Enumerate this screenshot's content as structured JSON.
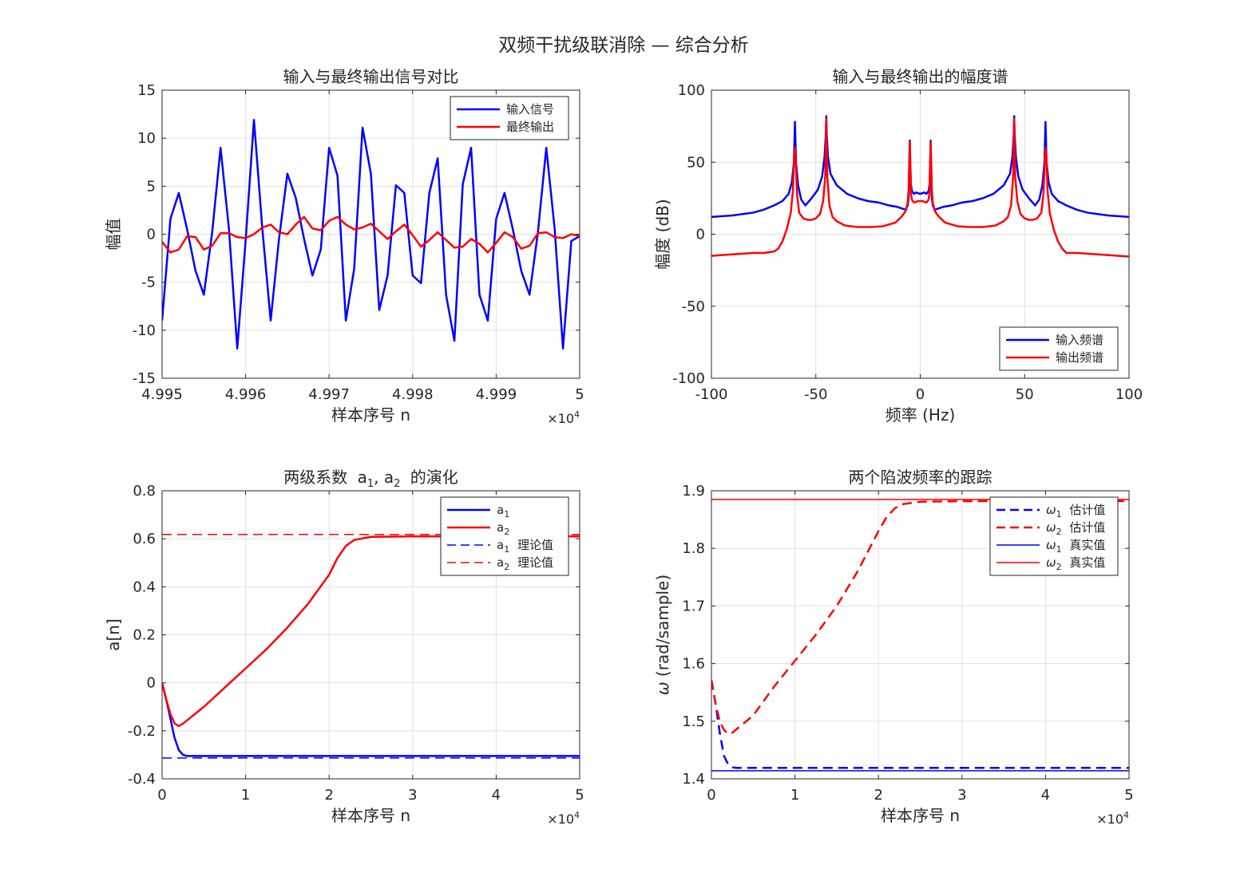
{
  "figure": {
    "suptitle": "双频干扰级联消除 — 综合分析"
  },
  "chart_data": [
    {
      "id": "p1",
      "type": "line",
      "title": "输入与最终输出信号对比",
      "xlabel": "样本序号 n",
      "ylabel": "幅值",
      "x_exponent": "×10",
      "x_exponent_power": "4",
      "xlim": [
        4.995,
        5.0
      ],
      "ylim": [
        -15,
        15
      ],
      "xticks": [
        4.995,
        4.996,
        4.997,
        4.998,
        4.999,
        5.0
      ],
      "xtick_labels": [
        "4.995",
        "4.996",
        "4.997",
        "4.998",
        "4.999",
        "5"
      ],
      "yticks": [
        -15,
        -10,
        -5,
        0,
        5,
        10,
        15
      ],
      "ytick_labels": [
        "-15",
        "-10",
        "-5",
        "0",
        "5",
        "10",
        "15"
      ],
      "grid": true,
      "legend_position": "top-right",
      "series": [
        {
          "name": "输入信号",
          "color": "#0000ff",
          "dash": "solid",
          "width": 2.5,
          "x_start": 4.995,
          "x_step": 0.0001,
          "values": [
            -9.0,
            1.6,
            4.3,
            0.5,
            -3.8,
            -6.3,
            0.2,
            9.0,
            0.6,
            -11.9,
            -0.7,
            11.9,
            0.6,
            -9.0,
            -0.5,
            6.3,
            3.8,
            -0.5,
            -4.3,
            -1.6,
            9.0,
            6.1,
            -9.0,
            -3.6,
            11.1,
            6.3,
            -7.9,
            -4.3,
            5.1,
            4.3,
            -4.3,
            -5.1,
            4.3,
            7.9,
            -6.3,
            -11.1,
            5.2,
            9.0,
            -6.3,
            -9.0,
            1.6,
            4.3,
            0.5,
            -3.8,
            -6.3,
            0.2,
            9.0,
            0.6,
            -11.9,
            -0.7,
            -0.2
          ]
        },
        {
          "name": "最终输出",
          "color": "#ff0000",
          "dash": "solid",
          "width": 2.5,
          "x_start": 4.995,
          "x_step": 0.0001,
          "values": [
            -0.8,
            -1.9,
            -1.6,
            -0.2,
            -0.3,
            -1.6,
            -1.2,
            0.1,
            0.1,
            -0.3,
            -0.4,
            0.0,
            0.7,
            1.0,
            0.2,
            0.0,
            1.0,
            1.8,
            0.6,
            0.4,
            1.4,
            1.8,
            1.0,
            0.5,
            0.7,
            1.1,
            0.3,
            -0.5,
            0.3,
            1.0,
            -0.1,
            -1.3,
            -0.6,
            0.2,
            -0.6,
            -1.4,
            -1.3,
            -0.5,
            -1.0,
            -1.9,
            -0.9,
            0.2,
            -0.3,
            -1.5,
            -1.2,
            0.1,
            0.2,
            -0.3,
            -0.4,
            0.0,
            -0.2
          ]
        }
      ]
    },
    {
      "id": "p2",
      "type": "line",
      "title": "输入与最终输出的幅度谱",
      "xlabel": "频率 (Hz)",
      "ylabel": "幅度 (dB)",
      "xlim": [
        -100,
        100
      ],
      "ylim": [
        -100,
        100
      ],
      "xticks": [
        -100,
        -50,
        0,
        50,
        100
      ],
      "xtick_labels": [
        "-100",
        "-50",
        "0",
        "50",
        "100"
      ],
      "yticks": [
        -100,
        -50,
        0,
        50,
        100
      ],
      "ytick_labels": [
        "-100",
        "-50",
        "0",
        "50",
        "100"
      ],
      "grid": true,
      "legend_position": "bottom-right",
      "series": [
        {
          "name": "输入频谱",
          "color": "#0000ff",
          "dash": "solid",
          "width": 2.5,
          "x": [
            -100,
            -90,
            -80,
            -75,
            -70,
            -66,
            -63,
            -61.5,
            -60.5,
            -60,
            -59.5,
            -58.5,
            -57,
            -55,
            -52,
            -49,
            -47,
            -45.8,
            -45.2,
            -45,
            -44.8,
            -44.2,
            -43,
            -40,
            -35,
            -30,
            -25,
            -20,
            -15,
            -11,
            -9,
            -7,
            -6,
            -5.5,
            -5,
            -4.5,
            -4,
            -3,
            -2,
            -1,
            0,
            1,
            2,
            3,
            4,
            4.5,
            5,
            5.5,
            6,
            7,
            9,
            11,
            15,
            20,
            25,
            30,
            35,
            40,
            43,
            44.2,
            44.8,
            45,
            45.2,
            45.8,
            47,
            49,
            52,
            55,
            57,
            58.5,
            59.5,
            60,
            60.5,
            61.5,
            63,
            66,
            70,
            75,
            80,
            90,
            100
          ],
          "y": [
            12,
            13,
            15,
            17,
            20,
            23,
            28,
            36,
            50,
            78,
            50,
            34,
            24,
            20,
            25,
            31,
            40,
            54,
            70,
            82,
            70,
            54,
            42,
            34,
            28,
            25,
            23,
            22,
            20,
            19,
            18,
            17,
            20,
            26,
            65,
            35,
            30,
            28,
            29,
            28.5,
            28,
            28.5,
            29,
            28,
            30,
            35,
            65,
            26,
            20,
            17,
            18,
            19,
            20,
            22,
            23,
            25,
            28,
            34,
            42,
            54,
            70,
            82,
            70,
            54,
            40,
            31,
            25,
            20,
            24,
            34,
            50,
            78,
            50,
            36,
            28,
            23,
            20,
            17,
            15,
            13,
            12
          ]
        },
        {
          "name": "输出频谱",
          "color": "#ff0000",
          "dash": "solid",
          "width": 2.5,
          "x": [
            -100,
            -95,
            -90,
            -85,
            -80,
            -75,
            -70,
            -68,
            -66,
            -64,
            -62,
            -61,
            -60.4,
            -60,
            -59.6,
            -59,
            -58,
            -56,
            -54,
            -52,
            -50,
            -48,
            -46.5,
            -45.5,
            -45,
            -44.5,
            -43.5,
            -42,
            -40,
            -36,
            -30,
            -24,
            -18,
            -12,
            -9,
            -7,
            -6,
            -5.6,
            -5,
            -4.4,
            -4,
            -3,
            -2,
            -1,
            0,
            1,
            2,
            3,
            4,
            4.4,
            5,
            5.6,
            6,
            7,
            9,
            12,
            18,
            24,
            30,
            36,
            40,
            42,
            43.5,
            44.5,
            45,
            45.5,
            46.5,
            48,
            50,
            52,
            54,
            56,
            58,
            59,
            59.6,
            60,
            60.4,
            61,
            62,
            64,
            66,
            68,
            70,
            75,
            80,
            85,
            90,
            95,
            100
          ],
          "y": [
            -15,
            -14.5,
            -14,
            -13.5,
            -13,
            -13,
            -12,
            -10,
            -5,
            3,
            15,
            30,
            55,
            60,
            48,
            28,
            15,
            11,
            10,
            10,
            11,
            14,
            23,
            40,
            80,
            40,
            20,
            12,
            9,
            6,
            5,
            5,
            5.5,
            8,
            12,
            16,
            22,
            30,
            64,
            28,
            24,
            22,
            22.5,
            23,
            23,
            23,
            22.5,
            22,
            24,
            28,
            64,
            30,
            22,
            16,
            12,
            8,
            5.5,
            5,
            5,
            6,
            9,
            12,
            20,
            40,
            80,
            40,
            23,
            14,
            11,
            10,
            10,
            11,
            15,
            28,
            48,
            60,
            55,
            30,
            15,
            3,
            -5,
            -10,
            -13,
            -13,
            -13.5,
            -14,
            -14.5,
            -15,
            -15.5
          ]
        }
      ]
    },
    {
      "id": "p3",
      "type": "line",
      "title": "两级系数",
      "title_sym1": "a",
      "title_sub1": "1",
      "title_sep": ", ",
      "title_sym2": "a",
      "title_sub2": "2",
      "title_tail": "的演化",
      "xlabel": "样本序号 n",
      "ylabel": "a[n]",
      "x_exponent": "×10",
      "x_exponent_power": "4",
      "xlim": [
        0,
        5
      ],
      "ylim": [
        -0.4,
        0.8
      ],
      "xticks": [
        0,
        1,
        2,
        3,
        4,
        5
      ],
      "xtick_labels": [
        "0",
        "1",
        "2",
        "3",
        "4",
        "5"
      ],
      "yticks": [
        -0.4,
        -0.2,
        0,
        0.2,
        0.4,
        0.6,
        0.8
      ],
      "ytick_labels": [
        "-0.4",
        "-0.2",
        "0",
        "0.2",
        "0.4",
        "0.6",
        "0.8"
      ],
      "grid": true,
      "legend_position": "top-right",
      "series": [
        {
          "name_sym": "a",
          "name_sub": "1",
          "name_suffix": "",
          "color": "#0000ff",
          "dash": "solid",
          "width": 2.5,
          "x": [
            0,
            0.05,
            0.1,
            0.15,
            0.2,
            0.25,
            0.3,
            0.35,
            0.5,
            1,
            2,
            3,
            4,
            5
          ],
          "y": [
            0,
            -0.07,
            -0.15,
            -0.23,
            -0.28,
            -0.3,
            -0.305,
            -0.305,
            -0.305,
            -0.305,
            -0.305,
            -0.305,
            -0.305,
            -0.305
          ]
        },
        {
          "name_sym": "a",
          "name_sub": "2",
          "name_suffix": "",
          "color": "#ff0000",
          "dash": "solid",
          "width": 2.5,
          "x": [
            0,
            0.05,
            0.1,
            0.15,
            0.2,
            0.25,
            0.5,
            0.75,
            1,
            1.25,
            1.5,
            1.75,
            2,
            2.1,
            2.2,
            2.3,
            2.5,
            3,
            4,
            5
          ],
          "y": [
            0,
            -0.07,
            -0.13,
            -0.17,
            -0.18,
            -0.17,
            -0.1,
            -0.02,
            0.06,
            0.14,
            0.23,
            0.33,
            0.45,
            0.52,
            0.57,
            0.595,
            0.608,
            0.61,
            0.61,
            0.61
          ]
        },
        {
          "name_sym": "a",
          "name_sub": "1",
          "name_suffix": "理论值",
          "color": "#0000ff",
          "dash": "dashed",
          "width": 1.5,
          "x": [
            0,
            5
          ],
          "y": [
            -0.313,
            -0.313
          ]
        },
        {
          "name_sym": "a",
          "name_sub": "2",
          "name_suffix": "理论值",
          "color": "#ff0000",
          "dash": "dashed",
          "width": 1.5,
          "x": [
            0,
            5
          ],
          "y": [
            0.618,
            0.618
          ]
        }
      ]
    },
    {
      "id": "p4",
      "type": "line",
      "title": "两个陷波频率的跟踪",
      "xlabel": "样本序号 n",
      "ylabel_sym": "ω",
      "ylabel": "(rad/sample)",
      "x_exponent": "×10",
      "x_exponent_power": "4",
      "xlim": [
        0,
        5
      ],
      "ylim": [
        1.4,
        1.9
      ],
      "xticks": [
        0,
        1,
        2,
        3,
        4,
        5
      ],
      "xtick_labels": [
        "0",
        "1",
        "2",
        "3",
        "4",
        "5"
      ],
      "yticks": [
        1.4,
        1.5,
        1.6,
        1.7,
        1.8,
        1.9
      ],
      "ytick_labels": [
        "1.4",
        "1.5",
        "1.6",
        "1.7",
        "1.8",
        "1.9"
      ],
      "grid": true,
      "legend_position": "top-right",
      "series": [
        {
          "name_sym": "ω",
          "name_sub": "1",
          "name_suffix": "估计值",
          "color": "#0000ff",
          "dash": "dashed",
          "width": 2.5,
          "x": [
            0,
            0.05,
            0.1,
            0.15,
            0.2,
            0.25,
            0.3,
            0.5,
            1,
            2,
            3,
            4,
            5
          ],
          "y": [
            1.571,
            1.53,
            1.48,
            1.44,
            1.425,
            1.42,
            1.419,
            1.419,
            1.419,
            1.419,
            1.419,
            1.419,
            1.419
          ]
        },
        {
          "name_sym": "ω",
          "name_sub": "2",
          "name_suffix": "估计值",
          "color": "#ff0000",
          "dash": "dashed",
          "width": 2.5,
          "x": [
            0,
            0.05,
            0.1,
            0.15,
            0.2,
            0.25,
            0.5,
            0.75,
            1,
            1.25,
            1.5,
            1.75,
            2,
            2.1,
            2.2,
            2.3,
            2.5,
            3,
            4,
            5
          ],
          "y": [
            1.571,
            1.53,
            1.5,
            1.485,
            1.478,
            1.48,
            1.51,
            1.56,
            1.605,
            1.65,
            1.7,
            1.76,
            1.83,
            1.855,
            1.87,
            1.877,
            1.881,
            1.882,
            1.882,
            1.882
          ]
        },
        {
          "name_sym": "ω",
          "name_sub": "1",
          "name_suffix": "真实值",
          "color": "#0000ff",
          "dash": "solid",
          "width": 1.5,
          "x": [
            0,
            5
          ],
          "y": [
            1.414,
            1.414
          ]
        },
        {
          "name_sym": "ω",
          "name_sub": "2",
          "name_suffix": "真实值",
          "color": "#ff0000",
          "dash": "solid",
          "width": 1.5,
          "x": [
            0,
            5
          ],
          "y": [
            1.885,
            1.885
          ]
        }
      ]
    }
  ]
}
